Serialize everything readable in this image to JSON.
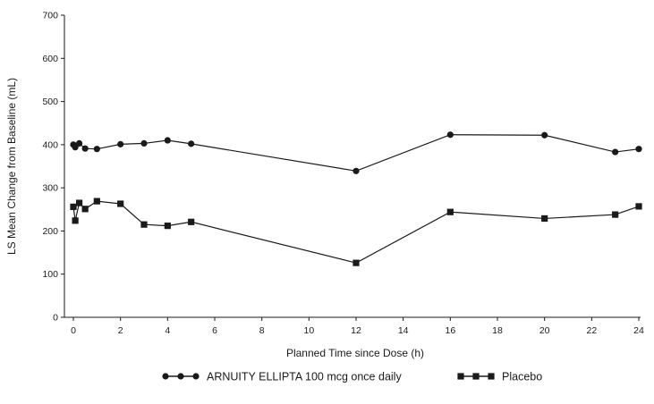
{
  "chart_data": {
    "type": "line",
    "title": "",
    "xlabel": "Planned Time since Dose (h)",
    "ylabel": "LS Mean Change from Baseline (mL)",
    "xlim": [
      0,
      24
    ],
    "ylim": [
      0,
      700
    ],
    "xticks": [
      0,
      2,
      4,
      6,
      8,
      10,
      12,
      14,
      16,
      18,
      20,
      22,
      24
    ],
    "yticks": [
      0,
      100,
      200,
      300,
      400,
      500,
      600,
      700
    ],
    "grid": false,
    "legend_position": "bottom",
    "series": [
      {
        "name": "ARNUITY ELLIPTA 100 mcg once daily",
        "marker": "circle",
        "color": "#1a1a1a",
        "x": [
          0,
          0.08,
          0.25,
          0.5,
          1,
          2,
          3,
          4,
          5,
          12,
          16,
          20,
          23,
          24
        ],
        "y": [
          400,
          394,
          403,
          391,
          390,
          401,
          403,
          410,
          402,
          339,
          423,
          422,
          383,
          390
        ]
      },
      {
        "name": "Placebo",
        "marker": "square",
        "color": "#1a1a1a",
        "x": [
          0,
          0.08,
          0.25,
          0.5,
          1,
          2,
          3,
          4,
          5,
          12,
          16,
          20,
          23,
          24
        ],
        "y": [
          256,
          224,
          265,
          251,
          269,
          263,
          215,
          212,
          221,
          126,
          244,
          229,
          238,
          257
        ]
      }
    ]
  }
}
